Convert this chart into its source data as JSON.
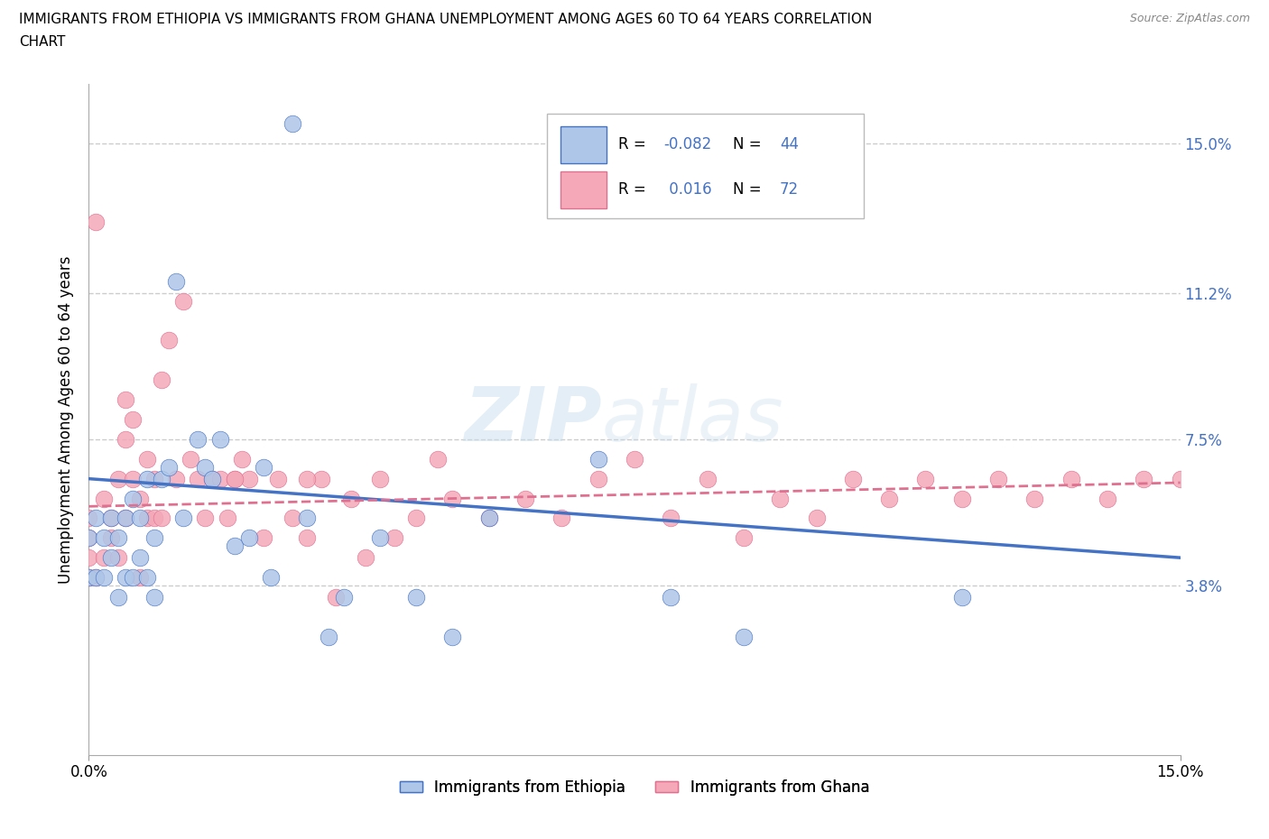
{
  "title_line1": "IMMIGRANTS FROM ETHIOPIA VS IMMIGRANTS FROM GHANA UNEMPLOYMENT AMONG AGES 60 TO 64 YEARS CORRELATION",
  "title_line2": "CHART",
  "source": "Source: ZipAtlas.com",
  "ylabel_label": "Unemployment Among Ages 60 to 64 years",
  "xmin": 0.0,
  "xmax": 0.15,
  "ymin": -0.005,
  "ymax": 0.165,
  "ethiopia_color": "#aec6e8",
  "ghana_color": "#f4a8b8",
  "ethiopia_edge_color": "#4472c4",
  "ghana_edge_color": "#e07090",
  "ethiopia_line_color": "#4472c4",
  "ghana_line_color": "#e07090",
  "ytick_vals": [
    0.038,
    0.075,
    0.112,
    0.15
  ],
  "ytick_labels": [
    "3.8%",
    "7.5%",
    "11.2%",
    "15.0%"
  ],
  "xtick_vals": [
    0.0,
    0.15
  ],
  "xtick_labels": [
    "0.0%",
    "15.0%"
  ],
  "grid_color": "#cccccc",
  "background_color": "#ffffff",
  "watermark_color": "#c8dff0",
  "eth_scatter_x": [
    0.0,
    0.0,
    0.001,
    0.001,
    0.002,
    0.002,
    0.003,
    0.003,
    0.004,
    0.004,
    0.005,
    0.005,
    0.006,
    0.006,
    0.007,
    0.007,
    0.008,
    0.008,
    0.009,
    0.009,
    0.01,
    0.011,
    0.012,
    0.013,
    0.015,
    0.016,
    0.017,
    0.018,
    0.02,
    0.022,
    0.024,
    0.025,
    0.028,
    0.03,
    0.033,
    0.035,
    0.04,
    0.045,
    0.05,
    0.055,
    0.07,
    0.08,
    0.09,
    0.12
  ],
  "eth_scatter_y": [
    0.04,
    0.05,
    0.04,
    0.055,
    0.04,
    0.05,
    0.045,
    0.055,
    0.035,
    0.05,
    0.04,
    0.055,
    0.04,
    0.06,
    0.045,
    0.055,
    0.04,
    0.065,
    0.035,
    0.05,
    0.065,
    0.068,
    0.115,
    0.055,
    0.075,
    0.068,
    0.065,
    0.075,
    0.048,
    0.05,
    0.068,
    0.04,
    0.155,
    0.055,
    0.025,
    0.035,
    0.05,
    0.035,
    0.025,
    0.055,
    0.07,
    0.035,
    0.025,
    0.035
  ],
  "gha_scatter_x": [
    0.0,
    0.0,
    0.0,
    0.0,
    0.001,
    0.001,
    0.002,
    0.002,
    0.003,
    0.003,
    0.004,
    0.004,
    0.005,
    0.005,
    0.005,
    0.006,
    0.006,
    0.007,
    0.007,
    0.008,
    0.008,
    0.009,
    0.009,
    0.01,
    0.011,
    0.012,
    0.013,
    0.014,
    0.015,
    0.016,
    0.017,
    0.018,
    0.019,
    0.02,
    0.021,
    0.022,
    0.024,
    0.026,
    0.028,
    0.03,
    0.032,
    0.034,
    0.036,
    0.038,
    0.04,
    0.042,
    0.045,
    0.048,
    0.05,
    0.055,
    0.06,
    0.065,
    0.07,
    0.075,
    0.08,
    0.085,
    0.09,
    0.095,
    0.1,
    0.105,
    0.11,
    0.115,
    0.12,
    0.125,
    0.13,
    0.135,
    0.14,
    0.145,
    0.15,
    0.01,
    0.02,
    0.03
  ],
  "gha_scatter_y": [
    0.04,
    0.045,
    0.05,
    0.055,
    0.13,
    0.04,
    0.045,
    0.06,
    0.05,
    0.055,
    0.065,
    0.045,
    0.055,
    0.075,
    0.085,
    0.065,
    0.08,
    0.04,
    0.06,
    0.055,
    0.07,
    0.055,
    0.065,
    0.09,
    0.1,
    0.065,
    0.11,
    0.07,
    0.065,
    0.055,
    0.065,
    0.065,
    0.055,
    0.065,
    0.07,
    0.065,
    0.05,
    0.065,
    0.055,
    0.05,
    0.065,
    0.035,
    0.06,
    0.045,
    0.065,
    0.05,
    0.055,
    0.07,
    0.06,
    0.055,
    0.06,
    0.055,
    0.065,
    0.07,
    0.055,
    0.065,
    0.05,
    0.06,
    0.055,
    0.065,
    0.06,
    0.065,
    0.06,
    0.065,
    0.06,
    0.065,
    0.06,
    0.065,
    0.065,
    0.055,
    0.065,
    0.065
  ],
  "eth_line_start_y": 0.065,
  "eth_line_end_y": 0.045,
  "gha_line_start_y": 0.058,
  "gha_line_end_y": 0.064,
  "legend_eth_label": "R = -0.082   N = 44",
  "legend_gha_label": "R =  0.016   N = 72",
  "bottom_legend_eth": "Immigrants from Ethiopia",
  "bottom_legend_gha": "Immigrants from Ghana"
}
